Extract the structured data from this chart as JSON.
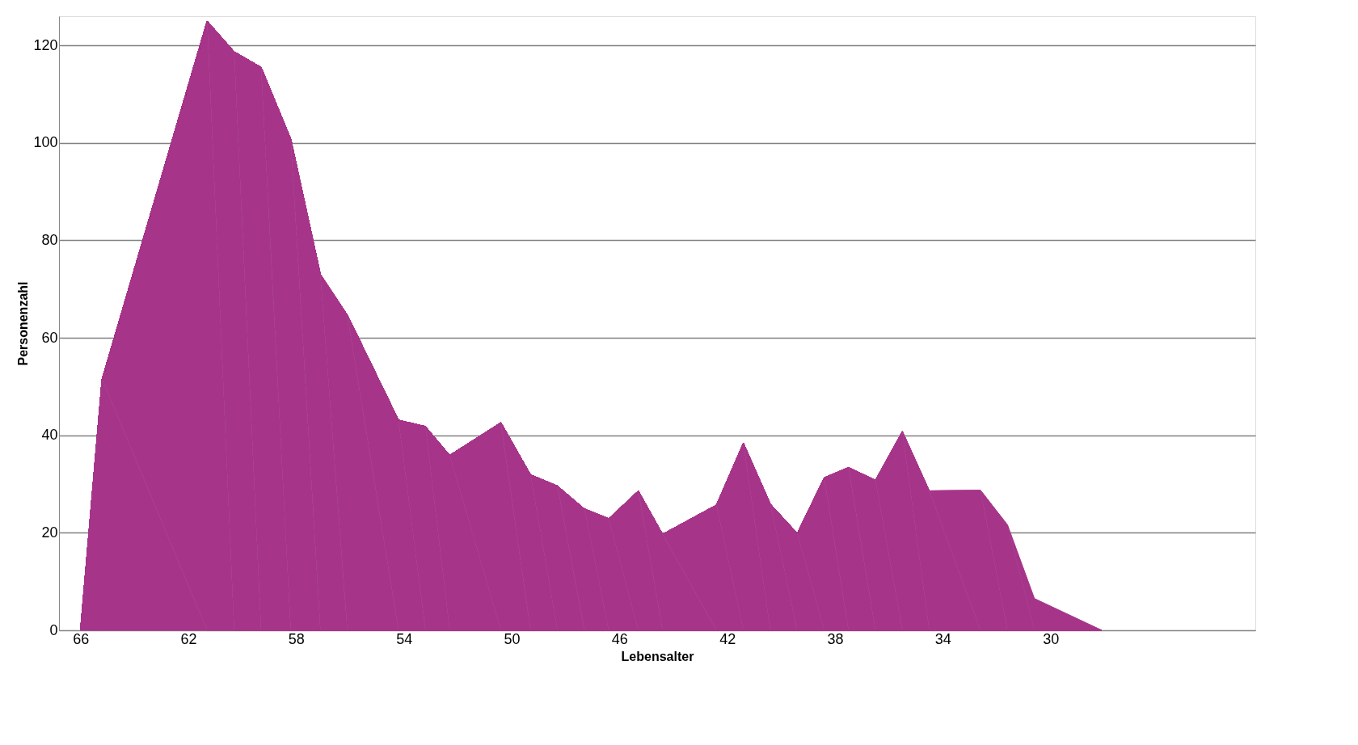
{
  "chart_data": {
    "type": "area",
    "xlabel": "Lebensalter",
    "ylabel": "Personenzahl",
    "x": [
      66,
      65.2,
      61.3,
      60.3,
      59.3,
      58.2,
      57.1,
      56.1,
      54.2,
      53.2,
      52.3,
      50.4,
      49.3,
      48.3,
      47.3,
      46.4,
      45.3,
      44.4,
      42.4,
      41.4,
      40.4,
      39.4,
      38.4,
      37.5,
      36.5,
      35.5,
      34.5,
      32.6,
      31.6,
      30.6,
      28.1
    ],
    "series": [
      {
        "color": "#a6358a",
        "values": [
          0,
          51.5,
          125,
          118.7,
          115.5,
          100.8,
          73,
          64.7,
          43.1,
          41.8,
          35.9,
          42.6,
          31.9,
          29.6,
          24.9,
          22.9,
          28.6,
          19.7,
          25.7,
          38.4,
          25.9,
          19.9,
          31.3,
          33.4,
          30.8,
          40.8,
          28.6,
          28.7,
          21.6,
          6.5,
          0
        ]
      }
    ],
    "xlim": [
      66.8,
      22.4
    ],
    "xticks": [
      66,
      62,
      58,
      54,
      50,
      46,
      42,
      38,
      34,
      30
    ],
    "ylim": [
      0,
      126
    ],
    "yticks": [
      0,
      20,
      40,
      60,
      80,
      100,
      120
    ],
    "grid": "y"
  }
}
